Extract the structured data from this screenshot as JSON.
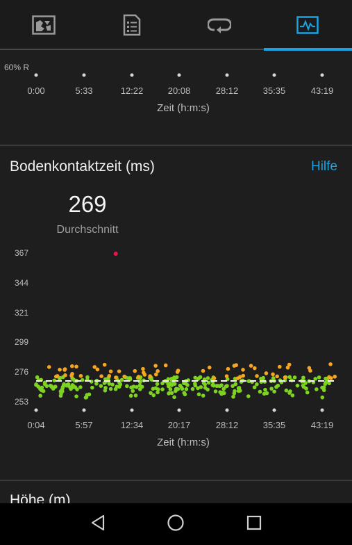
{
  "tabs": [
    {
      "icon": "map-icon",
      "active": false
    },
    {
      "icon": "document-list-icon",
      "active": false
    },
    {
      "icon": "laps-loop-icon",
      "active": false
    },
    {
      "icon": "activity-chart-icon",
      "active": true
    }
  ],
  "top_chart": {
    "zone_label": "60% R",
    "x_ticks": [
      "0:00",
      "5:33",
      "12:22",
      "20:08",
      "28:12",
      "35:35",
      "43:19"
    ],
    "x_label": "Zeit (h:m:s)"
  },
  "gct_card": {
    "title": "Bodenkontaktzeit (ms)",
    "help_label": "Hilfe",
    "average_value": "269",
    "average_label": "Durchschnitt"
  },
  "chart_data": {
    "type": "scatter",
    "title": "Bodenkontaktzeit (ms)",
    "xlabel": "Zeit (h:m:s)",
    "ylabel": "",
    "y_ticks": [
      367,
      344,
      321,
      299,
      276,
      253
    ],
    "ylim": [
      253,
      367
    ],
    "x_ticks": [
      "0:04",
      "5:57",
      "12:34",
      "20:17",
      "28:12",
      "35:35",
      "43:19"
    ],
    "x_range_minutes": [
      0.07,
      43.32
    ],
    "average_line": 269,
    "colors": {
      "green": "#7ed321",
      "orange": "#f5a623",
      "red": "#e8184a",
      "average": "#ffffff"
    },
    "outliers": [
      {
        "x_minutes": 11.5,
        "y": 367,
        "color": "red"
      }
    ],
    "series": [
      {
        "color": "green",
        "band": [
          256,
          272
        ]
      },
      {
        "color": "orange",
        "band": [
          271,
          282
        ]
      }
    ]
  },
  "next_section": {
    "title": "Höhe (m)"
  },
  "navbar": [
    {
      "icon": "back-triangle-icon"
    },
    {
      "icon": "home-circle-icon"
    },
    {
      "icon": "recents-square-icon"
    }
  ]
}
